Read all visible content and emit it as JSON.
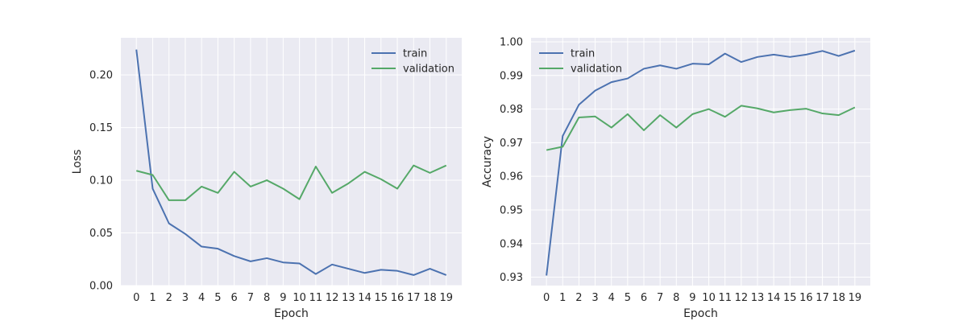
{
  "chart_data": [
    {
      "type": "line",
      "xlabel": "Epoch",
      "ylabel": "Loss",
      "x": [
        0,
        1,
        2,
        3,
        4,
        5,
        6,
        7,
        8,
        9,
        10,
        11,
        12,
        13,
        14,
        15,
        16,
        17,
        18,
        19
      ],
      "xticks": [
        "0",
        "1",
        "2",
        "3",
        "4",
        "5",
        "6",
        "7",
        "8",
        "9",
        "10",
        "11",
        "12",
        "13",
        "14",
        "15",
        "16",
        "17",
        "18",
        "19"
      ],
      "yticks": [
        0.0,
        0.05,
        0.1,
        0.15,
        0.2
      ],
      "ytick_labels": [
        "0.00",
        "0.05",
        "0.10",
        "0.15",
        "0.20"
      ],
      "xlim": [
        -0.95,
        19.95
      ],
      "ylim": [
        0.0,
        0.2352
      ],
      "grid": true,
      "legend_position": "top-right",
      "series": [
        {
          "name": "train",
          "color": "#4c72b0",
          "values": [
            0.224,
            0.092,
            0.059,
            0.049,
            0.037,
            0.035,
            0.028,
            0.023,
            0.026,
            0.022,
            0.021,
            0.011,
            0.02,
            0.016,
            0.012,
            0.015,
            0.014,
            0.01,
            0.016,
            0.01
          ]
        },
        {
          "name": "validation",
          "color": "#55a868",
          "values": [
            0.109,
            0.105,
            0.081,
            0.081,
            0.094,
            0.088,
            0.108,
            0.094,
            0.1,
            0.092,
            0.082,
            0.113,
            0.088,
            0.097,
            0.108,
            0.101,
            0.092,
            0.114,
            0.107,
            0.114
          ]
        }
      ]
    },
    {
      "type": "line",
      "xlabel": "Epoch",
      "ylabel": "Accuracy",
      "x": [
        0,
        1,
        2,
        3,
        4,
        5,
        6,
        7,
        8,
        9,
        10,
        11,
        12,
        13,
        14,
        15,
        16,
        17,
        18,
        19
      ],
      "xticks": [
        "0",
        "1",
        "2",
        "3",
        "4",
        "5",
        "6",
        "7",
        "8",
        "9",
        "10",
        "11",
        "12",
        "13",
        "14",
        "15",
        "16",
        "17",
        "18",
        "19"
      ],
      "yticks": [
        0.93,
        0.94,
        0.95,
        0.96,
        0.97,
        0.98,
        0.99,
        1.0
      ],
      "ytick_labels": [
        "0.93",
        "0.94",
        "0.95",
        "0.96",
        "0.97",
        "0.98",
        "0.99",
        "1.00"
      ],
      "xlim": [
        -0.95,
        19.95
      ],
      "ylim": [
        0.9275,
        1.0012
      ],
      "grid": true,
      "legend_position": "top-left",
      "series": [
        {
          "name": "train",
          "color": "#4c72b0",
          "values": [
            0.9305,
            0.972,
            0.9813,
            0.9855,
            0.988,
            0.9891,
            0.992,
            0.993,
            0.992,
            0.9935,
            0.9933,
            0.9965,
            0.994,
            0.9955,
            0.9962,
            0.9955,
            0.9962,
            0.9973,
            0.9958,
            0.9974
          ]
        },
        {
          "name": "validation",
          "color": "#55a868",
          "values": [
            0.9678,
            0.9688,
            0.9775,
            0.9778,
            0.9745,
            0.9785,
            0.9737,
            0.9782,
            0.9745,
            0.9785,
            0.98,
            0.9777,
            0.981,
            0.9802,
            0.979,
            0.9797,
            0.9801,
            0.9787,
            0.9782,
            0.9805
          ]
        }
      ]
    }
  ]
}
